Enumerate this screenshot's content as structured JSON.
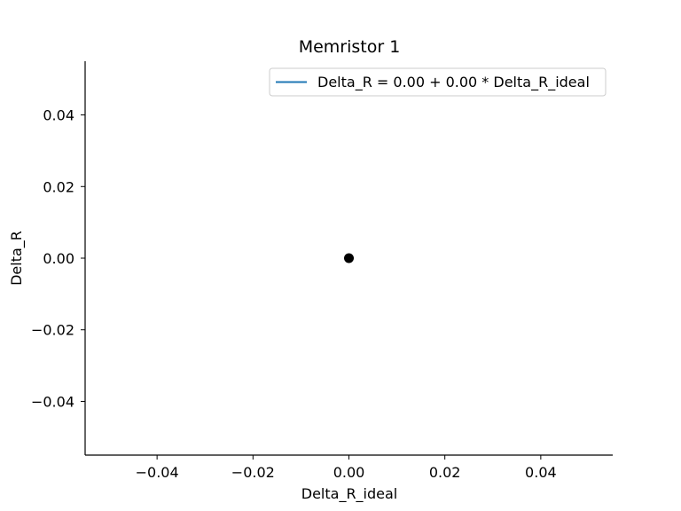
{
  "chart_data": {
    "type": "scatter",
    "title": "Memristor 1",
    "xlabel": "Delta_R_ideal",
    "ylabel": "Delta_R",
    "xlim": [
      -0.055,
      0.055
    ],
    "ylim": [
      -0.055,
      0.055
    ],
    "xticks": [
      -0.04,
      -0.02,
      0.0,
      0.02,
      0.04
    ],
    "xtick_labels": [
      "−0.04",
      "−0.02",
      "0.00",
      "0.02",
      "0.04"
    ],
    "yticks": [
      -0.04,
      -0.02,
      0.0,
      0.02,
      0.04
    ],
    "ytick_labels": [
      "−0.04",
      "−0.02",
      "0.00",
      "0.02",
      "0.04"
    ],
    "grid": false,
    "legend_position": "top-right",
    "points": [
      {
        "x": 0.0,
        "y": 0.0
      }
    ],
    "point_color": "#000000",
    "fit_line": {
      "label": "Delta_R = 0.00 + 0.00 * Delta_R_ideal",
      "intercept": 0.0,
      "slope": 0.0,
      "color": "#1f77b4"
    }
  }
}
